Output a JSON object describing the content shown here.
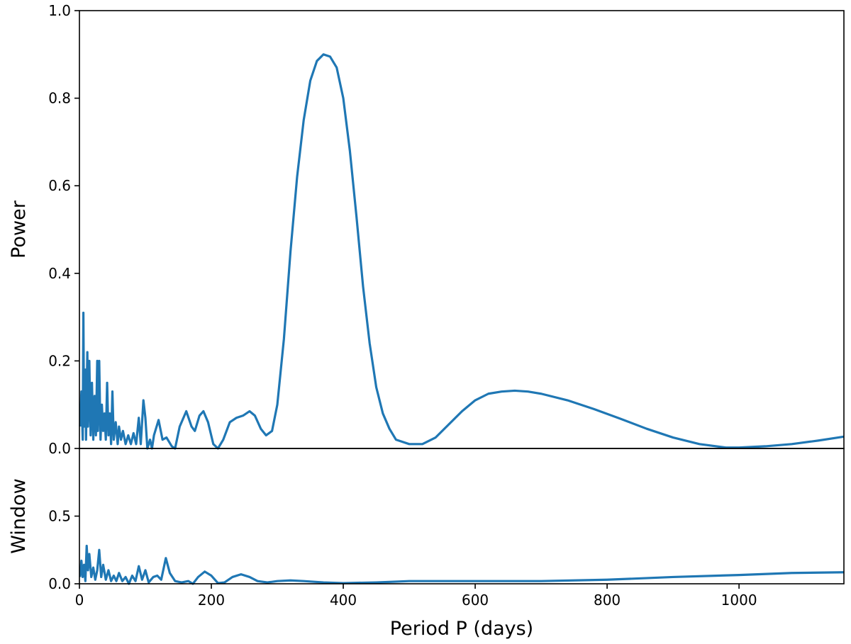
{
  "chart_data": [
    {
      "type": "line",
      "ylabel": "Power",
      "x": [
        1,
        3,
        5,
        6,
        7,
        9,
        10,
        12,
        13,
        15,
        17,
        19,
        21,
        23,
        25,
        27,
        28,
        30,
        32,
        34,
        36,
        38,
        40,
        42,
        44,
        46,
        48,
        50,
        52,
        55,
        58,
        60,
        63,
        66,
        70,
        74,
        78,
        82,
        86,
        90,
        93,
        97,
        100,
        103,
        107,
        110,
        113,
        120,
        126,
        132,
        140,
        145,
        152,
        162,
        170,
        175,
        182,
        188,
        195,
        203,
        210,
        218,
        228,
        238,
        248,
        258,
        266,
        275,
        283,
        292,
        300,
        310,
        320,
        330,
        340,
        350,
        360,
        370,
        380,
        390,
        400,
        410,
        420,
        430,
        440,
        450,
        460,
        470,
        480,
        500,
        520,
        540,
        560,
        580,
        600,
        620,
        640,
        660,
        680,
        700,
        740,
        780,
        820,
        860,
        900,
        940,
        980,
        1000,
        1040,
        1080,
        1120,
        1159
      ],
      "series": [
        {
          "name": "Power",
          "color": "#1f77b4",
          "values": [
            0.05,
            0.13,
            0.02,
            0.31,
            0.05,
            0.18,
            0.02,
            0.22,
            0.05,
            0.2,
            0.03,
            0.15,
            0.02,
            0.12,
            0.03,
            0.2,
            0.04,
            0.2,
            0.02,
            0.1,
            0.04,
            0.08,
            0.02,
            0.15,
            0.03,
            0.08,
            0.01,
            0.13,
            0.02,
            0.06,
            0.01,
            0.05,
            0.02,
            0.04,
            0.01,
            0.03,
            0.01,
            0.035,
            0.01,
            0.07,
            0.01,
            0.11,
            0.07,
            0.0,
            0.02,
            0.0,
            0.03,
            0.065,
            0.02,
            0.025,
            0.005,
            0.0,
            0.05,
            0.085,
            0.05,
            0.04,
            0.075,
            0.085,
            0.06,
            0.01,
            0.0,
            0.02,
            0.06,
            0.07,
            0.075,
            0.085,
            0.075,
            0.045,
            0.03,
            0.04,
            0.1,
            0.25,
            0.45,
            0.62,
            0.75,
            0.84,
            0.885,
            0.9,
            0.895,
            0.87,
            0.8,
            0.68,
            0.53,
            0.37,
            0.24,
            0.14,
            0.08,
            0.045,
            0.02,
            0.01,
            0.01,
            0.025,
            0.055,
            0.085,
            0.11,
            0.125,
            0.13,
            0.132,
            0.13,
            0.125,
            0.11,
            0.09,
            0.068,
            0.045,
            0.025,
            0.01,
            0.002,
            0.002,
            0.005,
            0.01,
            0.018,
            0.027
          ]
        }
      ],
      "xlim": [
        0,
        1159
      ],
      "ylim": [
        0,
        1
      ],
      "yticks": [
        {
          "value": 0,
          "label": "0.0"
        },
        {
          "value": 0.2,
          "label": "0.2"
        },
        {
          "value": 0.4,
          "label": "0.4"
        },
        {
          "value": 0.6,
          "label": "0.6"
        },
        {
          "value": 0.8,
          "label": "0.8"
        },
        {
          "value": 1,
          "label": "1.0"
        }
      ]
    },
    {
      "type": "line",
      "ylabel": "Window",
      "xlabel": "Period P (days)",
      "x": [
        1,
        3,
        5,
        7,
        9,
        11,
        13,
        15,
        18,
        21,
        24,
        27,
        30,
        33,
        36,
        40,
        44,
        48,
        52,
        56,
        60,
        65,
        70,
        75,
        80,
        85,
        90,
        95,
        100,
        105,
        112,
        118,
        124,
        131,
        137,
        145,
        155,
        165,
        172,
        180,
        190,
        200,
        210,
        220,
        232,
        245,
        258,
        270,
        285,
        300,
        320,
        340,
        370,
        400,
        450,
        500,
        600,
        700,
        800,
        900,
        1000,
        1080,
        1159
      ],
      "series": [
        {
          "name": "Window",
          "color": "#1f77b4",
          "values": [
            0.05,
            0.17,
            0.05,
            0.14,
            0.02,
            0.28,
            0.1,
            0.22,
            0.05,
            0.12,
            0.03,
            0.1,
            0.25,
            0.05,
            0.14,
            0.03,
            0.1,
            0.02,
            0.06,
            0.02,
            0.08,
            0.02,
            0.05,
            0.0,
            0.06,
            0.02,
            0.13,
            0.03,
            0.1,
            0.01,
            0.05,
            0.06,
            0.03,
            0.19,
            0.08,
            0.02,
            0.01,
            0.02,
            0.0,
            0.05,
            0.09,
            0.06,
            0.005,
            0.01,
            0.05,
            0.07,
            0.05,
            0.02,
            0.01,
            0.02,
            0.025,
            0.02,
            0.01,
            0.005,
            0.01,
            0.02,
            0.02,
            0.02,
            0.03,
            0.05,
            0.065,
            0.08,
            0.085
          ]
        }
      ],
      "xlim": [
        0,
        1159
      ],
      "ylim": [
        0,
        1
      ],
      "xticks": [
        0,
        200,
        400,
        600,
        800,
        1000
      ],
      "yticks": [
        {
          "value": 0,
          "label": "0.0"
        },
        {
          "value": 0.5,
          "label": "0.5"
        }
      ]
    }
  ]
}
